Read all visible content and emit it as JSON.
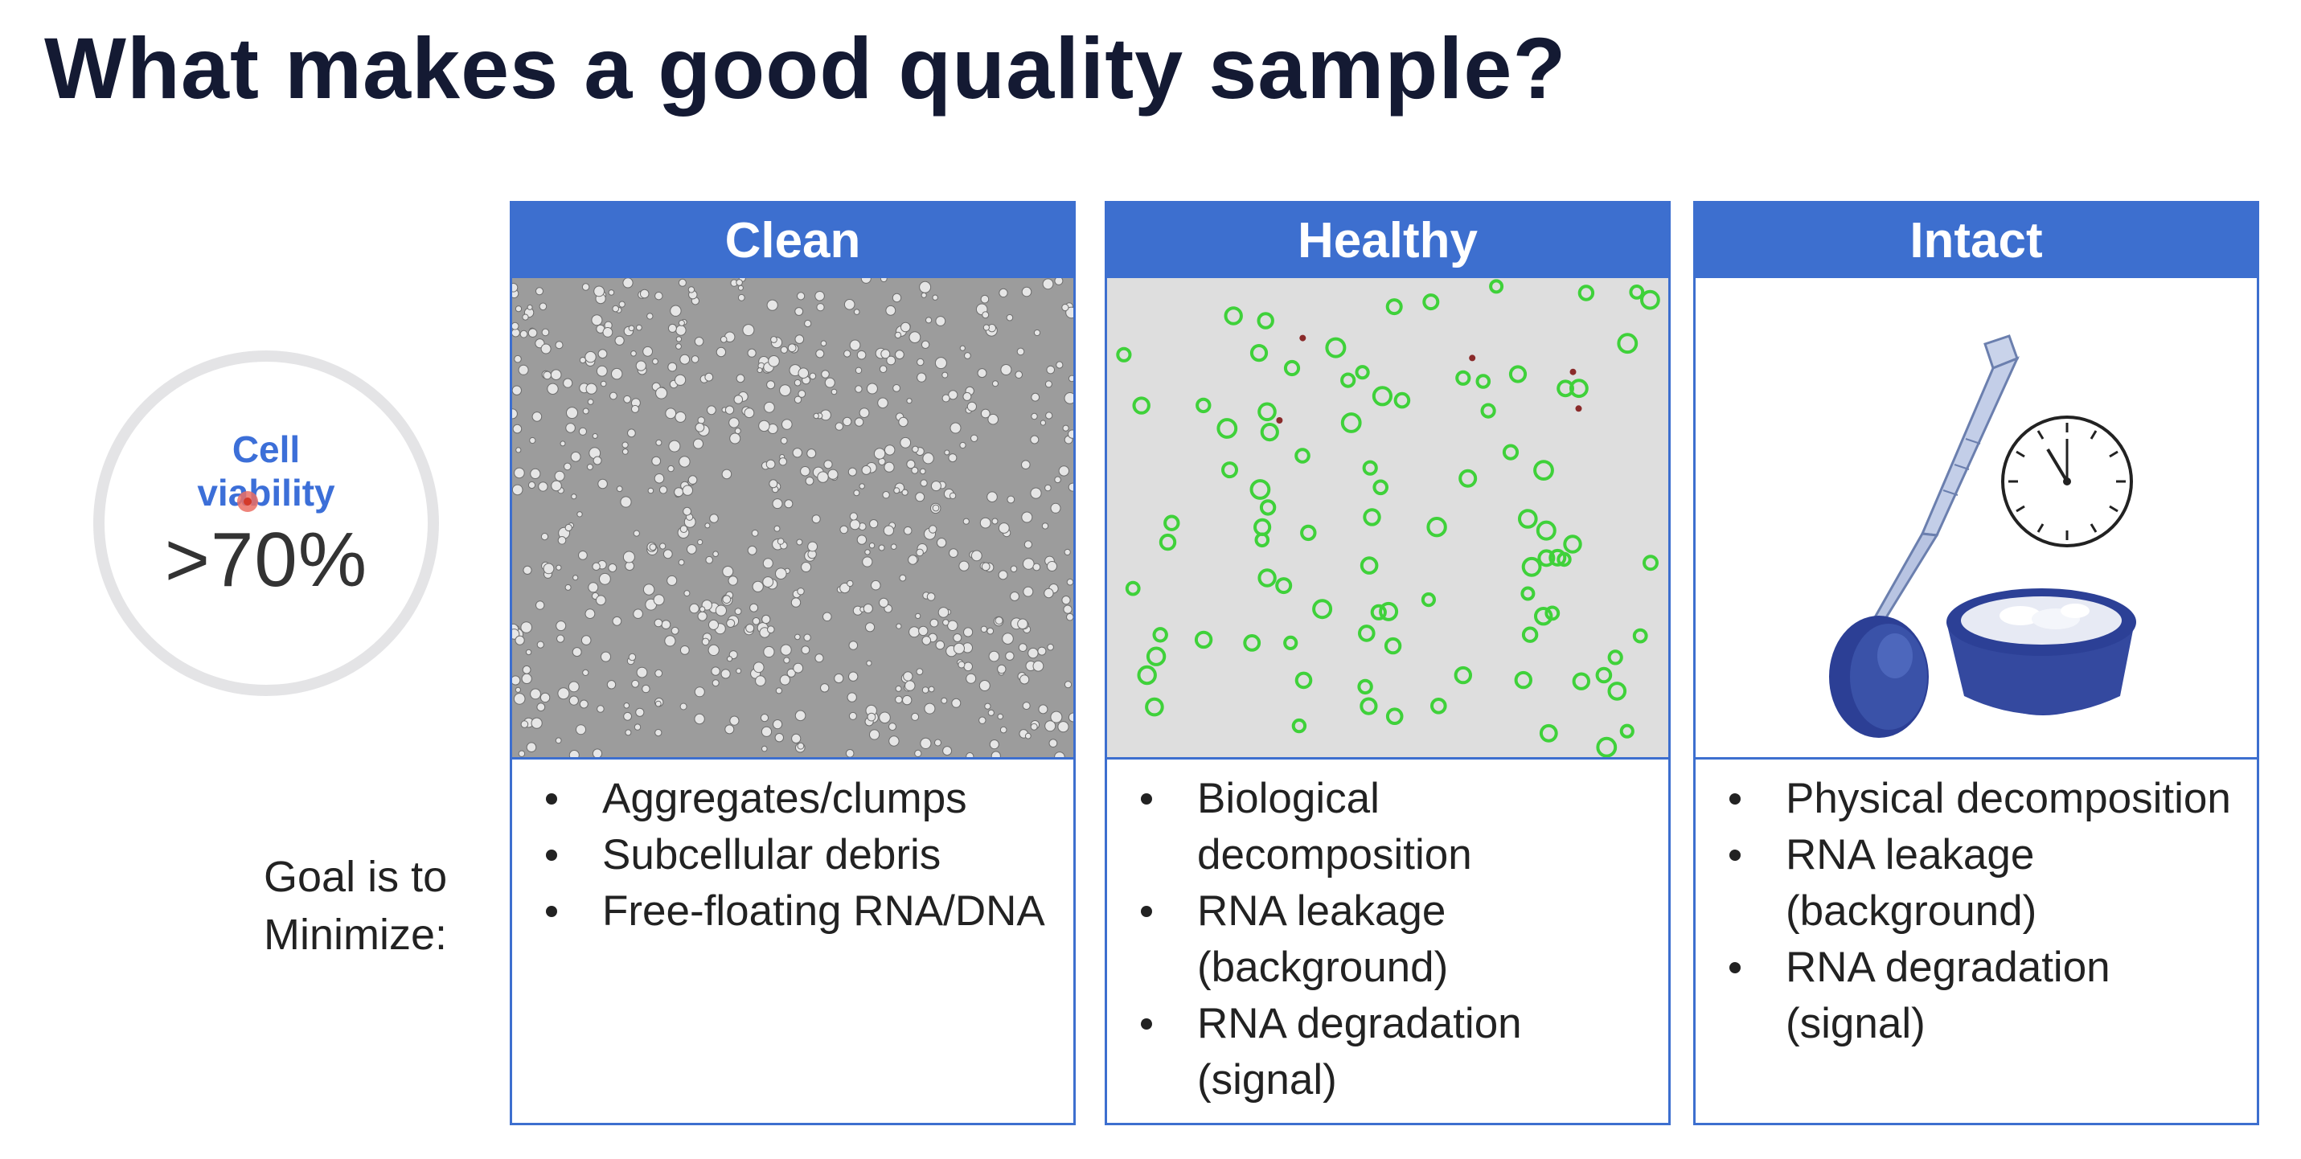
{
  "slide": {
    "title": "What makes a good quality sample?"
  },
  "viability": {
    "label_line1": "Cell",
    "label_line2": "viability",
    "value": ">70%"
  },
  "goal": {
    "line1": "Goal is to",
    "line2": "Minimize:"
  },
  "panels": [
    {
      "header": "Clean",
      "items": [
        "Aggregates/clumps",
        "Subcellular debris",
        "Free-floating RNA/DNA"
      ]
    },
    {
      "header": "Healthy",
      "items": [
        "Biological decomposition",
        "RNA leakage (background)",
        "RNA degradation (signal)"
      ]
    },
    {
      "header": "Intact",
      "items": [
        "Physical decomposition",
        "RNA leakage (background)",
        "RNA degradation (signal)"
      ]
    }
  ],
  "icons": {
    "clean_image": "brightfield-cells-micrograph-icon",
    "healthy_image": "fluorescent-live-cells-micrograph-icon",
    "intact_pipette": "pipette-tip-icon",
    "intact_clock": "clock-icon",
    "intact_ice": "ice-bucket-icon"
  },
  "colors": {
    "title": "#141a33",
    "panel_accent": "#3d6fcf",
    "viability_label": "#3c6fd8",
    "ring": "#e4e4e6",
    "live_cell": "#3fd13a",
    "dead_cell": "#8a2a2a"
  }
}
